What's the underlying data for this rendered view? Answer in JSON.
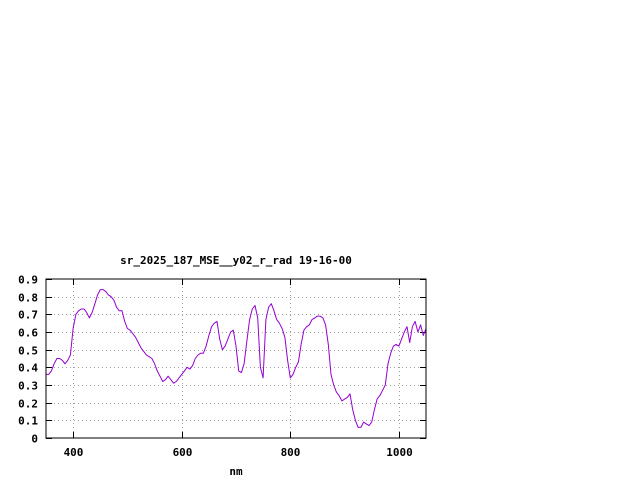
{
  "chart_data": {
    "type": "line",
    "title": "sr_2025_187_MSE__y02_r_rad 19-16-00",
    "xlabel": "nm",
    "ylabel": "",
    "xlim": [
      350,
      1050
    ],
    "ylim": [
      0,
      0.9
    ],
    "x_ticks": [
      400,
      600,
      800,
      1000
    ],
    "y_ticks": [
      0,
      0.1,
      0.2,
      0.3,
      0.4,
      0.5,
      0.6,
      0.7,
      0.8,
      0.9
    ],
    "grid": true,
    "series": [
      {
        "color": "#9400d3",
        "x": [
          350,
          355,
          360,
          365,
          370,
          375,
          380,
          385,
          390,
          395,
          400,
          405,
          410,
          415,
          420,
          425,
          430,
          435,
          440,
          445,
          450,
          455,
          460,
          465,
          470,
          475,
          480,
          485,
          490,
          495,
          500,
          505,
          510,
          515,
          520,
          525,
          530,
          535,
          540,
          545,
          550,
          555,
          560,
          565,
          570,
          575,
          580,
          585,
          590,
          595,
          600,
          605,
          610,
          615,
          620,
          625,
          630,
          635,
          640,
          645,
          650,
          655,
          660,
          665,
          670,
          675,
          680,
          685,
          690,
          695,
          700,
          705,
          710,
          715,
          720,
          725,
          730,
          735,
          740,
          745,
          750,
          755,
          760,
          765,
          770,
          775,
          780,
          785,
          790,
          795,
          800,
          805,
          810,
          815,
          820,
          825,
          830,
          835,
          840,
          845,
          850,
          855,
          860,
          865,
          870,
          875,
          880,
          885,
          890,
          895,
          900,
          905,
          910,
          915,
          920,
          925,
          930,
          935,
          940,
          945,
          950,
          955,
          960,
          965,
          970,
          975,
          980,
          985,
          990,
          995,
          1000,
          1005,
          1010,
          1015,
          1020,
          1025,
          1030,
          1035,
          1040,
          1045,
          1050
        ],
        "y": [
          0.36,
          0.36,
          0.38,
          0.42,
          0.45,
          0.45,
          0.44,
          0.42,
          0.44,
          0.47,
          0.62,
          0.7,
          0.72,
          0.73,
          0.73,
          0.71,
          0.68,
          0.71,
          0.76,
          0.81,
          0.84,
          0.84,
          0.83,
          0.81,
          0.8,
          0.78,
          0.74,
          0.72,
          0.72,
          0.66,
          0.62,
          0.61,
          0.59,
          0.57,
          0.54,
          0.51,
          0.49,
          0.47,
          0.46,
          0.45,
          0.42,
          0.38,
          0.35,
          0.32,
          0.33,
          0.35,
          0.33,
          0.31,
          0.32,
          0.34,
          0.36,
          0.38,
          0.4,
          0.39,
          0.41,
          0.45,
          0.47,
          0.48,
          0.48,
          0.52,
          0.58,
          0.63,
          0.65,
          0.66,
          0.56,
          0.5,
          0.52,
          0.56,
          0.6,
          0.61,
          0.52,
          0.38,
          0.37,
          0.42,
          0.55,
          0.67,
          0.73,
          0.75,
          0.68,
          0.4,
          0.34,
          0.67,
          0.74,
          0.76,
          0.72,
          0.67,
          0.65,
          0.62,
          0.57,
          0.44,
          0.34,
          0.36,
          0.4,
          0.43,
          0.53,
          0.61,
          0.63,
          0.64,
          0.67,
          0.68,
          0.69,
          0.69,
          0.68,
          0.64,
          0.53,
          0.36,
          0.3,
          0.26,
          0.24,
          0.21,
          0.22,
          0.23,
          0.25,
          0.16,
          0.1,
          0.06,
          0.06,
          0.09,
          0.08,
          0.07,
          0.09,
          0.16,
          0.22,
          0.24,
          0.27,
          0.3,
          0.42,
          0.48,
          0.52,
          0.53,
          0.52,
          0.56,
          0.6,
          0.63,
          0.54,
          0.63,
          0.66,
          0.6,
          0.64,
          0.58,
          0.62
        ]
      }
    ]
  }
}
